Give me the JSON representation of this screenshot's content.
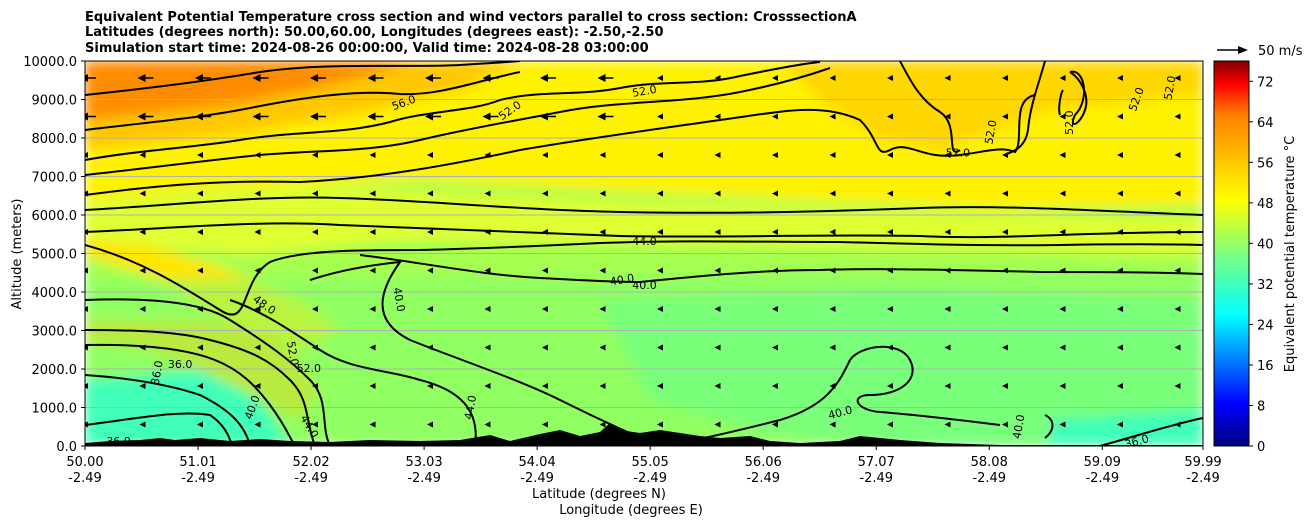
{
  "chart_data": {
    "type": "heatmap",
    "title_lines": [
      "Equivalent Potential Temperature cross section and wind vectors parallel to cross section: CrosssectionA",
      "Latitudes (degrees north): 50.00,60.00, Longitudes (degrees east): -2.50,-2.50",
      "Simulation start time: 2024-08-26 00:00:00, Valid time: 2024-08-28 03:00:00"
    ],
    "ylabel": "Altitude (meters)",
    "xlabel_lat": "Latitude (degrees N)",
    "xlabel_lon": "Longitude (degrees E)",
    "ylim": [
      0,
      10000
    ],
    "y_ticks": [
      "0.0",
      "1000.0",
      "2000.0",
      "3000.0",
      "4000.0",
      "5000.0",
      "6000.0",
      "7000.0",
      "8000.0",
      "9000.0",
      "10000.0"
    ],
    "y_tick_values": [
      0,
      1000,
      2000,
      3000,
      4000,
      5000,
      6000,
      7000,
      8000,
      9000,
      10000
    ],
    "x_tick_lat": [
      "50.00",
      "51.01",
      "52.02",
      "53.03",
      "54.04",
      "55.05",
      "56.06",
      "57.07",
      "58.08",
      "59.09",
      "59.99"
    ],
    "x_tick_lon": [
      "-2.49",
      "-2.49",
      "-2.49",
      "-2.49",
      "-2.49",
      "-2.49",
      "-2.49",
      "-2.49",
      "-2.49",
      "-2.49",
      "-2.49"
    ],
    "x_tick_values": [
      50.0,
      51.01,
      52.02,
      53.03,
      54.04,
      55.05,
      56.06,
      57.07,
      58.08,
      59.09,
      59.99
    ],
    "xlim": [
      50.0,
      59.99
    ],
    "colorbar": {
      "label": "Equivalent potential temperature °C",
      "ticks": [
        "0",
        "8",
        "16",
        "24",
        "32",
        "40",
        "48",
        "56",
        "64",
        "72"
      ],
      "tick_values": [
        0,
        8,
        16,
        24,
        32,
        40,
        48,
        56,
        64,
        72
      ],
      "range": [
        0,
        76
      ],
      "colors": [
        "#00007f",
        "#0000ff",
        "#007fff",
        "#00ffff",
        "#7fff7f",
        "#ffff00",
        "#ff7f00",
        "#ff0000",
        "#7f0000"
      ]
    },
    "wind_reference": {
      "label": "50 m/s",
      "value_ms": 50
    },
    "contour_labels": [
      {
        "text": "56.0",
        "lat": 52.85,
        "z": 8900,
        "angle": -20
      },
      {
        "text": "52.0",
        "lat": 53.8,
        "z": 8700,
        "angle": -35
      },
      {
        "text": "52.0",
        "lat": 55.0,
        "z": 9200,
        "angle": -10
      },
      {
        "text": "52.0",
        "lat": 58.1,
        "z": 8150,
        "angle": -80
      },
      {
        "text": "52.0",
        "lat": 58.8,
        "z": 8400,
        "angle": -90
      },
      {
        "text": "52.0",
        "lat": 59.4,
        "z": 9000,
        "angle": -70
      },
      {
        "text": "52.0",
        "lat": 59.7,
        "z": 9300,
        "angle": -80
      },
      {
        "text": "52.0",
        "lat": 57.8,
        "z": 7600,
        "angle": 0
      },
      {
        "text": "44.0",
        "lat": 55.0,
        "z": 5300,
        "angle": 0
      },
      {
        "text": "40.0",
        "lat": 54.8,
        "z": 4300,
        "angle": -10
      },
      {
        "text": "40.0",
        "lat": 55.0,
        "z": 4150,
        "angle": 0
      },
      {
        "text": "48.0",
        "lat": 51.6,
        "z": 3650,
        "angle": 35
      },
      {
        "text": "40.0",
        "lat": 52.8,
        "z": 3800,
        "angle": 80
      },
      {
        "text": "52.0",
        "lat": 51.85,
        "z": 2400,
        "angle": 80
      },
      {
        "text": "52.0",
        "lat": 52.0,
        "z": 2000,
        "angle": 0
      },
      {
        "text": "36.0",
        "lat": 50.85,
        "z": 2100,
        "angle": 0
      },
      {
        "text": "36.0",
        "lat": 50.65,
        "z": 1900,
        "angle": -80
      },
      {
        "text": "40.0",
        "lat": 51.5,
        "z": 1000,
        "angle": -70
      },
      {
        "text": "44.0",
        "lat": 52.0,
        "z": 500,
        "angle": 60
      },
      {
        "text": "44.0",
        "lat": 53.45,
        "z": 1000,
        "angle": -80
      },
      {
        "text": "40.0",
        "lat": 56.75,
        "z": 850,
        "angle": -15
      },
      {
        "text": "40.0",
        "lat": 58.35,
        "z": 500,
        "angle": -80
      },
      {
        "text": "36.0",
        "lat": 59.4,
        "z": 100,
        "angle": -15
      },
      {
        "text": "36.0",
        "lat": 50.3,
        "z": 100,
        "angle": 0
      }
    ]
  }
}
